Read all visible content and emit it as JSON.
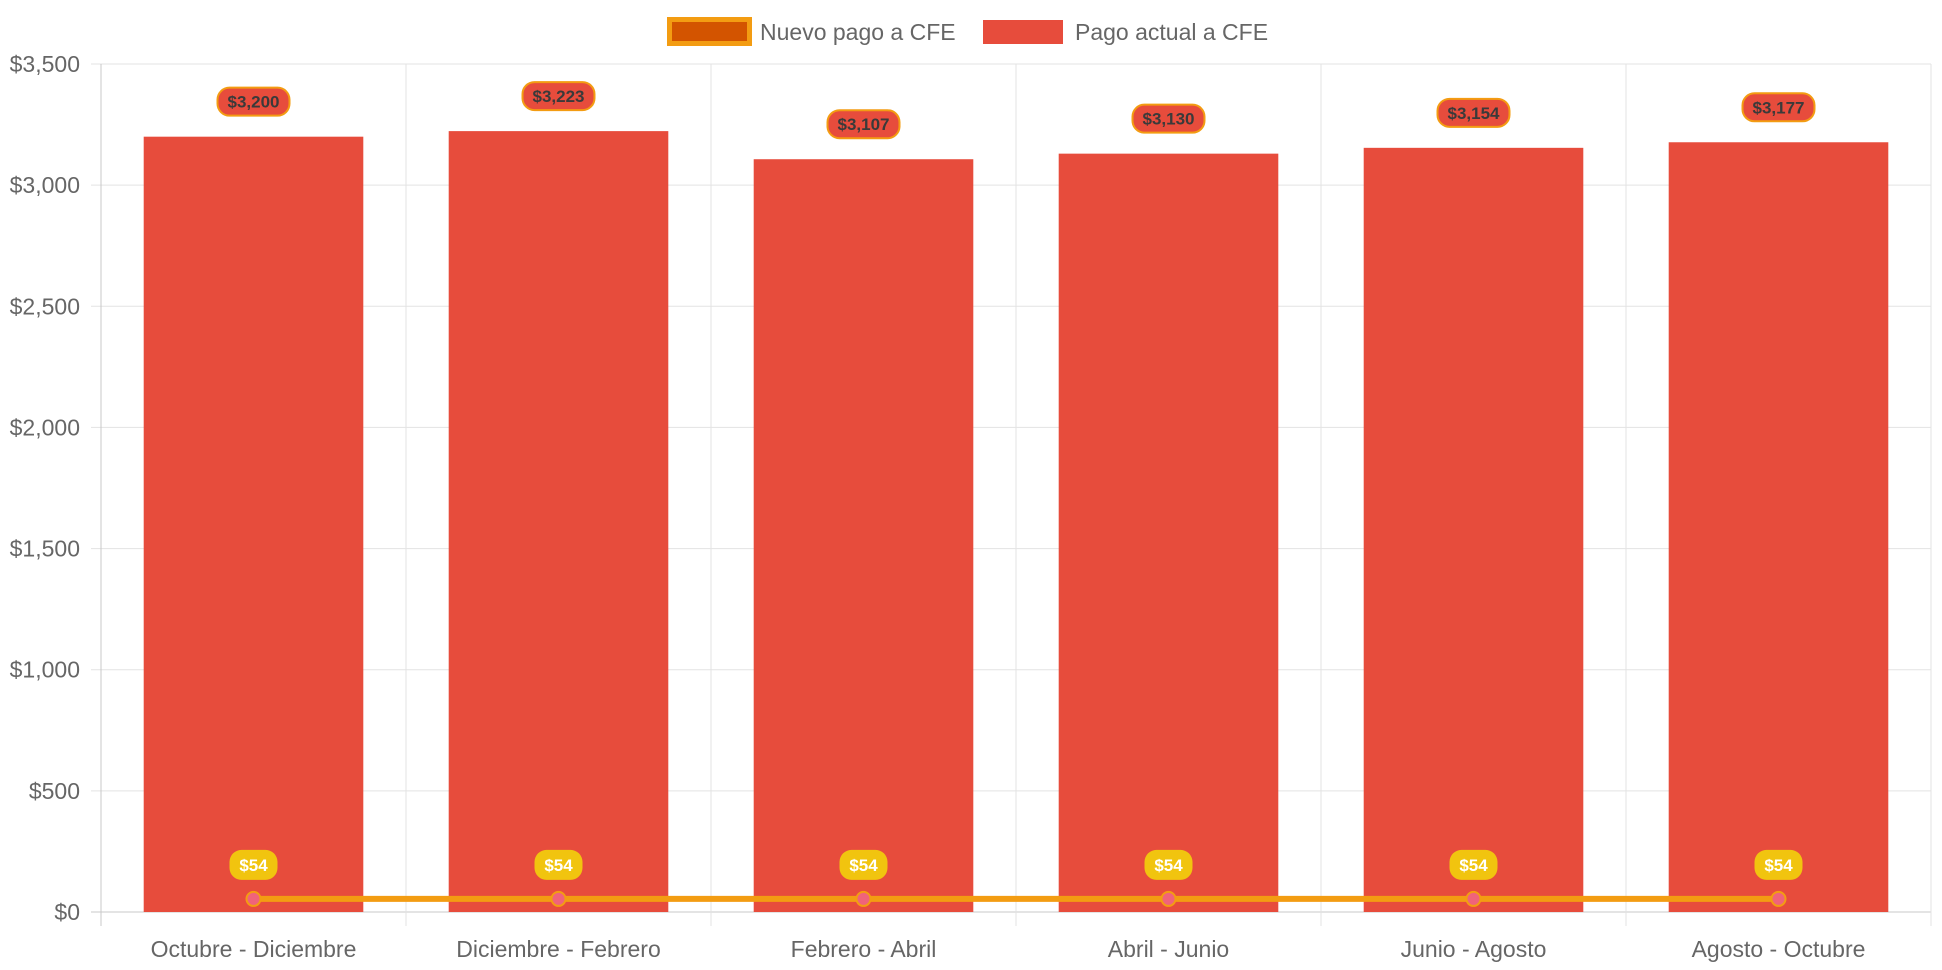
{
  "chart_data": {
    "type": "bar",
    "title": "",
    "xlabel": "",
    "ylabel": "",
    "categories": [
      "Octubre - Diciembre",
      "Diciembre - Febrero",
      "Febrero - Abril",
      "Abril - Junio",
      "Junio - Agosto",
      "Agosto - Octubre"
    ],
    "ylim": [
      0,
      3500
    ],
    "yticks": [
      0,
      500,
      1000,
      1500,
      2000,
      2500,
      3000,
      3500
    ],
    "ytick_labels": [
      "$0",
      "$500",
      "$1,000",
      "$1,500",
      "$2,000",
      "$2,500",
      "$3,000",
      "$3,500"
    ],
    "grid": true,
    "legend_position": "top-center",
    "series": [
      {
        "name": "Nuevo pago a CFE",
        "type": "line",
        "values": [
          54,
          54,
          54,
          54,
          54,
          54
        ],
        "value_labels": [
          "$54",
          "$54",
          "$54",
          "$54",
          "$54",
          "$54"
        ],
        "color": "#f39c12",
        "legend_fill": "#d35400",
        "point_color": "#f0637a",
        "label_bg": "#f1c40f"
      },
      {
        "name": "Pago actual a CFE",
        "type": "bar",
        "values": [
          3200,
          3223,
          3107,
          3130,
          3154,
          3177
        ],
        "value_labels": [
          "$3,200",
          "$3,223",
          "$3,107",
          "$3,130",
          "$3,154",
          "$3,177"
        ],
        "color": "#e74c3c",
        "label_border": "#f39c12"
      }
    ]
  }
}
